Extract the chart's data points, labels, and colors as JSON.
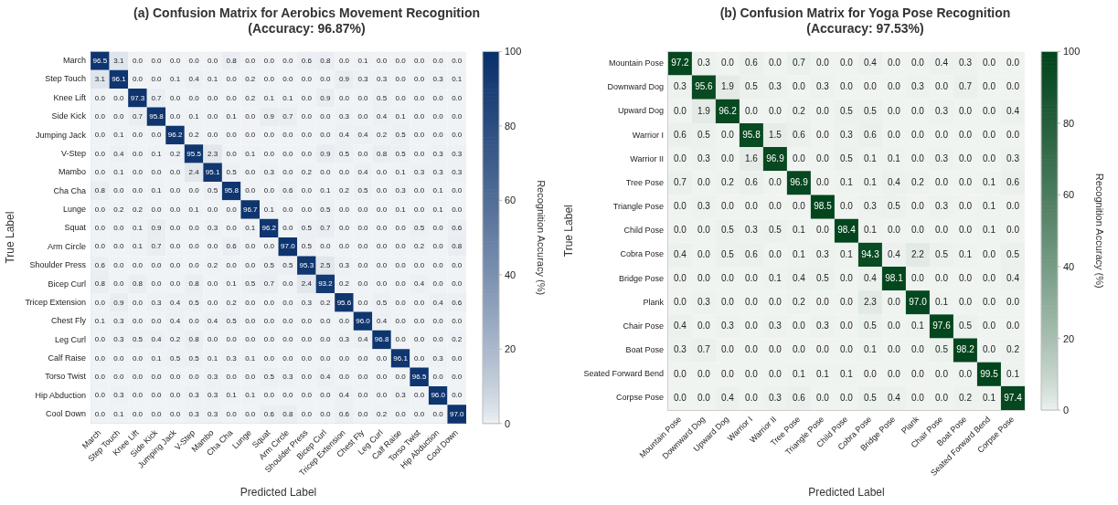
{
  "chart_data": [
    {
      "type": "heatmap",
      "title": "(a) Confusion Matrix for Aerobics Movement Recognition",
      "subtitle": "(Accuracy: 96.87%)",
      "xlabel": "Predicted Label",
      "ylabel": "True Label",
      "clabel": "Recognition Accuracy (%)",
      "color": "#08306b",
      "clim": [
        0,
        100
      ],
      "cticks": [
        0,
        20,
        40,
        60,
        80,
        100
      ],
      "grid": true,
      "categories": [
        "March",
        "Step Touch",
        "Knee Lift",
        "Side Kick",
        "Jumping Jack",
        "V-Step",
        "Mambo",
        "Cha Cha",
        "Lunge",
        "Squat",
        "Arm Circle",
        "Shoulder Press",
        "Bicep Curl",
        "Tricep Extension",
        "Chest Fly",
        "Leg Curl",
        "Calf Raise",
        "Torso Twist",
        "Hip Abduction",
        "Cool Down"
      ],
      "y_categories": [
        "March",
        "Step Touch",
        "Knee Lift",
        "Side Kick",
        "Jumping Jack",
        "V-Step",
        "Mambo",
        "Cha Cha",
        "Lunge",
        "Squat",
        "Arm Circle",
        "Shoulder Press",
        "Bicep Curl",
        "Tricep Extension",
        "Chest Fly",
        "Leg Curl",
        "Calf Raise",
        "Torso Twist",
        "Hip Abduction",
        "Cool Down"
      ],
      "cells": [
        [
          96.5,
          3.1,
          0.0,
          0.0,
          0.0,
          0.0,
          0.0,
          0.8,
          0.0,
          0.0,
          0.0,
          0.6,
          0.8,
          0.0,
          0.1,
          0.0,
          0.0,
          0.0,
          0.0,
          0.0
        ],
        [
          3.1,
          96.1,
          0.0,
          0.0,
          0.1,
          0.4,
          0.1,
          0.0,
          0.2,
          0.0,
          0.0,
          0.0,
          0.0,
          0.9,
          0.3,
          0.3,
          0.0,
          0.0,
          0.3,
          0.1
        ],
        [
          0.0,
          0.0,
          97.3,
          0.7,
          0.0,
          0.0,
          0.0,
          0.0,
          0.2,
          0.1,
          0.1,
          0.0,
          0.9,
          0.0,
          0.0,
          0.5,
          0.0,
          0.0,
          0.0,
          0.0
        ],
        [
          0.0,
          0.0,
          0.7,
          95.8,
          0.0,
          0.1,
          0.0,
          0.1,
          0.0,
          0.9,
          0.7,
          0.0,
          0.0,
          0.3,
          0.0,
          0.4,
          0.1,
          0.0,
          0.0,
          0.0
        ],
        [
          0.0,
          0.1,
          0.0,
          0.0,
          96.2,
          0.2,
          0.0,
          0.0,
          0.0,
          0.0,
          0.0,
          0.0,
          0.0,
          0.4,
          0.4,
          0.2,
          0.5,
          0.0,
          0.0,
          0.0
        ],
        [
          0.0,
          0.4,
          0.0,
          0.1,
          0.2,
          95.5,
          2.3,
          0.0,
          0.1,
          0.0,
          0.0,
          0.0,
          0.9,
          0.5,
          0.0,
          0.8,
          0.5,
          0.0,
          0.3,
          0.3
        ],
        [
          0.0,
          0.1,
          0.0,
          0.0,
          0.0,
          2.4,
          95.1,
          0.5,
          0.0,
          0.3,
          0.0,
          0.2,
          0.0,
          0.0,
          0.4,
          0.0,
          0.1,
          0.3,
          0.3,
          0.3
        ],
        [
          0.8,
          0.0,
          0.0,
          0.1,
          0.0,
          0.0,
          0.5,
          95.8,
          0.0,
          0.0,
          0.6,
          0.0,
          0.1,
          0.2,
          0.5,
          0.0,
          0.3,
          0.0,
          0.1,
          0.0
        ],
        [
          0.0,
          0.2,
          0.2,
          0.0,
          0.0,
          0.1,
          0.0,
          0.0,
          96.7,
          0.1,
          0.0,
          0.0,
          0.5,
          0.0,
          0.0,
          0.0,
          0.1,
          0.0,
          0.1,
          0.0
        ],
        [
          0.0,
          0.0,
          0.1,
          0.9,
          0.0,
          0.0,
          0.3,
          0.0,
          0.1,
          96.2,
          0.0,
          0.5,
          0.7,
          0.0,
          0.0,
          0.0,
          0.0,
          0.5,
          0.0,
          0.6
        ],
        [
          0.0,
          0.0,
          0.1,
          0.7,
          0.0,
          0.0,
          0.0,
          0.6,
          0.0,
          0.0,
          97.0,
          0.5,
          0.0,
          0.0,
          0.0,
          0.0,
          0.0,
          0.2,
          0.0,
          0.8
        ],
        [
          0.6,
          0.0,
          0.0,
          0.0,
          0.0,
          0.0,
          0.2,
          0.0,
          0.0,
          0.5,
          0.5,
          95.3,
          2.5,
          0.3,
          0.0,
          0.0,
          0.0,
          0.0,
          0.0,
          0.0
        ],
        [
          0.8,
          0.0,
          0.8,
          0.0,
          0.0,
          0.8,
          0.0,
          0.1,
          0.5,
          0.7,
          0.0,
          2.4,
          93.2,
          0.2,
          0.0,
          0.0,
          0.0,
          0.4,
          0.0,
          0.0
        ],
        [
          0.0,
          0.9,
          0.0,
          0.3,
          0.4,
          0.5,
          0.0,
          0.2,
          0.0,
          0.0,
          0.0,
          0.3,
          0.2,
          95.6,
          0.0,
          0.5,
          0.0,
          0.0,
          0.4,
          0.6
        ],
        [
          0.1,
          0.3,
          0.0,
          0.0,
          0.4,
          0.0,
          0.4,
          0.5,
          0.0,
          0.0,
          0.0,
          0.0,
          0.0,
          0.0,
          96.0,
          0.4,
          0.0,
          0.0,
          0.0,
          0.0
        ],
        [
          0.0,
          0.3,
          0.5,
          0.4,
          0.2,
          0.8,
          0.0,
          0.0,
          0.0,
          0.0,
          0.0,
          0.0,
          0.0,
          0.3,
          0.4,
          96.8,
          0.0,
          0.0,
          0.0,
          0.2
        ],
        [
          0.0,
          0.0,
          0.0,
          0.1,
          0.5,
          0.5,
          0.1,
          0.3,
          0.1,
          0.0,
          0.0,
          0.0,
          0.0,
          0.0,
          0.0,
          0.0,
          96.1,
          0.0,
          0.3,
          0.0
        ],
        [
          0.0,
          0.0,
          0.0,
          0.0,
          0.0,
          0.0,
          0.3,
          0.0,
          0.0,
          0.5,
          0.3,
          0.0,
          0.4,
          0.0,
          0.0,
          0.0,
          0.0,
          96.5,
          0.0,
          0.0
        ],
        [
          0.0,
          0.3,
          0.0,
          0.0,
          0.0,
          0.3,
          0.3,
          0.1,
          0.1,
          0.0,
          0.0,
          0.0,
          0.0,
          0.4,
          0.0,
          0.0,
          0.3,
          0.0,
          96.0,
          0.0
        ],
        [
          0.0,
          0.1,
          0.0,
          0.0,
          0.0,
          0.3,
          0.3,
          0.0,
          0.0,
          0.6,
          0.8,
          0.0,
          0.0,
          0.6,
          0.0,
          0.2,
          0.0,
          0.0,
          0.0,
          97.0
        ]
      ],
      "cell_labels": [
        [
          "96.5",
          "3.1",
          "0.0",
          "0.0",
          "0.0",
          "0.0",
          "0.0",
          "0.8",
          "0.0",
          "0.0",
          "0.0",
          "0.6",
          "0.8",
          "0.0",
          "0.1",
          "0.0",
          "0.0",
          "0.0",
          "0.0",
          "0.0"
        ],
        [
          "3.1",
          "96.1",
          "0.0",
          "0.0",
          "0.1",
          "0.4",
          "0.1",
          "0.0",
          "0.2",
          "0.0",
          "0.0",
          "0.0",
          "0.0",
          "0.9",
          "0.3",
          "0.3",
          "0.0",
          "0.0",
          "0.3",
          "0.1"
        ],
        [
          "0.0",
          "0.0",
          "97.3",
          "0.7",
          "0.0",
          "0.0",
          "0.0",
          "0.0",
          "0.2",
          "0.1",
          "0.1",
          "0.0",
          "0.9",
          "0.0",
          "0.0",
          "0.5",
          "0.0",
          "0.0",
          "0.0",
          "0.0"
        ],
        [
          "0.0",
          "0.0",
          "0.7",
          "95.8",
          "0.0",
          "0.1",
          "0.0",
          "0.1",
          "0.0",
          "0.9",
          "0.7",
          "0.0",
          "0.0",
          "0.3",
          "0.0",
          "0.4",
          "0.1",
          "0.0",
          "0.0",
          "0.0"
        ],
        [
          "0.0",
          "0.1",
          "0.0",
          "0.0",
          "96.2",
          "0.2",
          "0.0",
          "0.0",
          "0.0",
          "0.0",
          "0.0",
          "0.0",
          "0.0",
          "0.4",
          "0.4",
          "0.2",
          "0.5",
          "0.0",
          "0.0",
          "0.0"
        ],
        [
          "0.0",
          "0.4",
          "0.0",
          "0.1",
          "0.2",
          "95.5",
          "2.3",
          "0.0",
          "0.1",
          "0.0",
          "0.0",
          "0.0",
          "0.9",
          "0.5",
          "0.0",
          "0.8",
          "0.5",
          "0.0",
          "0.3",
          "0.3"
        ],
        [
          "0.0",
          "0.1",
          "0.0",
          "0.0",
          "0.0",
          "2.4",
          "95.1",
          "0.5",
          "0.0",
          "0.3",
          "0.0",
          "0.2",
          "0.0",
          "0.0",
          "0.4",
          "0.0",
          "0.1",
          "0.3",
          "0.3",
          "0.3"
        ],
        [
          "0.8",
          "0.0",
          "0.0",
          "0.1",
          "0.0",
          "0.0",
          "0.5",
          "95.8",
          "0.0",
          "0.0",
          "0.6",
          "0.0",
          "0.1",
          "0.2",
          "0.5",
          "0.0",
          "0.3",
          "0.0",
          "0.1",
          "0.0"
        ],
        [
          "0.0",
          "0.2",
          "0.2",
          "0.0",
          "0.0",
          "0.1",
          "0.0",
          "0.0",
          "96.7",
          "0.1",
          "0.0",
          "0.0",
          "0.5",
          "0.0",
          "0.0",
          "0.0",
          "0.1",
          "0.0",
          "0.1",
          "0.0"
        ],
        [
          "0.0",
          "0.0",
          "0.1",
          "0.9",
          "0.0",
          "0.0",
          "0.3",
          "0.0",
          "0.1",
          "96.2",
          "0.0",
          "0.5",
          "0.7",
          "0.0",
          "0.0",
          "0.0",
          "0.0",
          "0.5",
          "0.0",
          "0.6"
        ],
        [
          "0.0",
          "0.0",
          "0.1",
          "0.7",
          "0.0",
          "0.0",
          "0.0",
          "0.6",
          "0.0",
          "0.0",
          "97.0",
          "0.5",
          "0.0",
          "0.0",
          "0.0",
          "0.0",
          "0.0",
          "0.2",
          "0.0",
          "0.8"
        ],
        [
          "0.6",
          "0.0",
          "0.0",
          "0.0",
          "0.0",
          "0.0",
          "0.2",
          "0.0",
          "0.0",
          "0.5",
          "0.5",
          "95.3",
          "2.5",
          "0.3",
          "0.0",
          "0.0",
          "0.0",
          "0.0",
          "0.0",
          "0.0"
        ],
        [
          "0.8",
          "0.0",
          "0.8",
          "0.0",
          "0.0",
          "0.8",
          "0.0",
          "0.1",
          "0.5",
          "0.7",
          "0.0",
          "2.4",
          "93.2",
          "0.2",
          "0.0",
          "0.0",
          "0.0",
          "0.4",
          "0.0",
          "0.0"
        ],
        [
          "0.0",
          "0.9",
          "0.0",
          "0.3",
          "0.4",
          "0.5",
          "0.0",
          "0.2",
          "0.0",
          "0.0",
          "0.0",
          "0.3",
          "0.2",
          "95.6",
          "0.0",
          "0.5",
          "0.0",
          "0.0",
          "0.4",
          "0.6"
        ],
        [
          "0.1",
          "0.3",
          "0.0",
          "0.0",
          "0.4",
          "0.0",
          "0.4",
          "0.5",
          "0.0",
          "0.0",
          "0.0",
          "0.0",
          "0.0",
          "0.0",
          "96.0",
          "0.4",
          "0.0",
          "0.0",
          "0.0",
          "0.0"
        ],
        [
          "0.0",
          "0.3",
          "0.5",
          "0.4",
          "0.2",
          "0.8",
          "0.0",
          "0.0",
          "0.0",
          "0.0",
          "0.0",
          "0.0",
          "0.0",
          "0.3",
          "0.4",
          "96.8",
          "0.0",
          "0.0",
          "0.0",
          "0.2"
        ],
        [
          "0.0",
          "0.0",
          "0.0",
          "0.1",
          "0.5",
          "0.5",
          "0.1",
          "0.3",
          "0.1",
          "0.0",
          "0.0",
          "0.0",
          "0.0",
          "0.0",
          "0.0",
          "0.0",
          "96.1",
          "0.0",
          "0.3",
          "0.0"
        ],
        [
          "0.0",
          "0.0",
          "0.0",
          "0.0",
          "0.0",
          "0.0",
          "0.3",
          "0.0",
          "0.0",
          "0.5",
          "0.3",
          "0.0",
          "0.4",
          "0.0",
          "0.0",
          "0.0",
          "0.0",
          "96.5",
          "0.0",
          "0.0"
        ],
        [
          "0.0",
          "0.3",
          "0.0",
          "0.0",
          "0.0",
          "0.3",
          "0.3",
          "0.1",
          "0.1",
          "0.0",
          "0.0",
          "0.0",
          "0.0",
          "0.4",
          "0.0",
          "0.0",
          "0.3",
          "0.0",
          "96.0",
          "0.0"
        ],
        [
          "0.0",
          "0.1",
          "0.0",
          "0.0",
          "0.0",
          "0.3",
          "0.3",
          "0.0",
          "0.0",
          "0.6",
          "0.8",
          "0.0",
          "0.0",
          "0.6",
          "0.0",
          "0.2",
          "0.0",
          "0.0",
          "0.0",
          "97.0"
        ]
      ]
    },
    {
      "type": "heatmap",
      "title": "(b) Confusion Matrix for Yoga Pose Recognition",
      "subtitle": "(Accuracy: 97.53%)",
      "xlabel": "Predicted Label",
      "ylabel": "True Label",
      "clabel": "Recognition Accuracy (%)",
      "color": "#00441b",
      "clim": [
        0,
        100
      ],
      "cticks": [
        0,
        20,
        40,
        60,
        80,
        100
      ],
      "grid": true,
      "categories": [
        "Mountain Pose",
        "Downward Dog",
        "Upward Dog",
        "Warrior I",
        "Warrior II",
        "Tree Pose",
        "Triangle Pose",
        "Child Pose",
        "Cobra Pose",
        "Bridge Pose",
        "Plank",
        "Chair Pose",
        "Boat Pose",
        "Seated Forward Bend",
        "Corpse Pose"
      ],
      "y_categories": [
        "Mountain Pose",
        "Downward Dog",
        "Upward Dog",
        "Warrior I",
        "Warrior II",
        "Tree Pose",
        "Triangle Pose",
        "Child Pose",
        "Cobra Pose",
        "Bridge Pose",
        "Plank",
        "Chair Pose",
        "Boat Pose",
        "Seated Forward Bend",
        "Corpse Pose"
      ],
      "cells": [
        [
          97.2,
          0.3,
          0.0,
          0.6,
          0.0,
          0.7,
          0.0,
          0.0,
          0.4,
          0.0,
          0.0,
          0.4,
          0.3,
          0.0,
          0.0
        ],
        [
          0.3,
          95.6,
          1.9,
          0.5,
          0.3,
          0.0,
          0.3,
          0.0,
          0.0,
          0.0,
          0.3,
          0.0,
          0.7,
          0.0,
          0.0
        ],
        [
          0.0,
          1.9,
          96.2,
          0.0,
          0.0,
          0.2,
          0.0,
          0.5,
          0.5,
          0.0,
          0.0,
          0.3,
          0.0,
          0.0,
          0.4
        ],
        [
          0.6,
          0.5,
          0.0,
          95.8,
          1.5,
          0.6,
          0.0,
          0.3,
          0.6,
          0.0,
          0.0,
          0.0,
          0.0,
          0.0,
          0.0
        ],
        [
          0.0,
          0.3,
          0.0,
          1.6,
          96.9,
          0.0,
          0.0,
          0.5,
          0.1,
          0.1,
          0.0,
          0.3,
          0.0,
          0.0,
          0.3
        ],
        [
          0.7,
          0.0,
          0.2,
          0.6,
          0.0,
          96.9,
          0.0,
          0.1,
          0.1,
          0.4,
          0.2,
          0.0,
          0.0,
          0.1,
          0.6
        ],
        [
          0.0,
          0.3,
          0.0,
          0.0,
          0.0,
          0.0,
          98.5,
          0.0,
          0.3,
          0.5,
          0.0,
          0.3,
          0.0,
          0.1,
          0.0
        ],
        [
          0.0,
          0.0,
          0.5,
          0.3,
          0.5,
          0.1,
          0.0,
          98.4,
          0.1,
          0.0,
          0.0,
          0.0,
          0.0,
          0.1,
          0.0
        ],
        [
          0.4,
          0.0,
          0.5,
          0.6,
          0.0,
          0.1,
          0.3,
          0.1,
          94.3,
          0.4,
          2.2,
          0.5,
          0.1,
          0.0,
          0.5
        ],
        [
          0.0,
          0.0,
          0.0,
          0.0,
          0.1,
          0.4,
          0.5,
          0.0,
          0.4,
          98.1,
          0.0,
          0.0,
          0.0,
          0.0,
          0.4
        ],
        [
          0.0,
          0.3,
          0.0,
          0.0,
          0.0,
          0.2,
          0.0,
          0.0,
          2.3,
          0.0,
          97.0,
          0.1,
          0.0,
          0.0,
          0.0
        ],
        [
          0.4,
          0.0,
          0.3,
          0.0,
          0.3,
          0.0,
          0.3,
          0.0,
          0.5,
          0.0,
          0.1,
          97.6,
          0.5,
          0.0,
          0.0
        ],
        [
          0.3,
          0.7,
          0.0,
          0.0,
          0.0,
          0.0,
          0.0,
          0.0,
          0.1,
          0.0,
          0.0,
          0.5,
          98.2,
          0.0,
          0.2
        ],
        [
          0.0,
          0.0,
          0.0,
          0.0,
          0.0,
          0.1,
          0.1,
          0.1,
          0.0,
          0.0,
          0.0,
          0.0,
          0.0,
          99.5,
          0.1
        ],
        [
          0.0,
          0.0,
          0.4,
          0.0,
          0.3,
          0.6,
          0.0,
          0.0,
          0.5,
          0.4,
          0.0,
          0.0,
          0.2,
          0.1,
          97.4
        ]
      ],
      "cell_labels": [
        [
          "97.2",
          "0.3",
          "0.0",
          "0.6",
          "0.0",
          "0.7",
          "0.0",
          "0.0",
          "0.4",
          "0.0",
          "0.0",
          "0.4",
          "0.3",
          "0.0",
          "0.0"
        ],
        [
          "0.3",
          "95.6",
          "1.9",
          "0.5",
          "0.3",
          "0.0",
          "0.3",
          "0.0",
          "0.0",
          "0.0",
          "0.3",
          "0.0",
          "0.7",
          "0.0",
          "0.0"
        ],
        [
          "0.0",
          "1.9",
          "96.2",
          "0.0",
          "0.0",
          "0.2",
          "0.0",
          "0.5",
          "0.5",
          "0.0",
          "0.0",
          "0.3",
          "0.0",
          "0.0",
          "0.4"
        ],
        [
          "0.6",
          "0.5",
          "0.0",
          "95.8",
          "1.5",
          "0.6",
          "0.0",
          "0.3",
          "0.6",
          "0.0",
          "0.0",
          "0.0",
          "0.0",
          "0.0",
          "0.0"
        ],
        [
          "0.0",
          "0.3",
          "0.0",
          "1.6",
          "96.9",
          "0.0",
          "0.0",
          "0.5",
          "0.1",
          "0.1",
          "0.0",
          "0.3",
          "0.0",
          "0.0",
          "0.3"
        ],
        [
          "0.7",
          "0.0",
          "0.2",
          "0.6",
          "0.0",
          "96.9",
          "0.0",
          "0.1",
          "0.1",
          "0.4",
          "0.2",
          "0.0",
          "0.0",
          "0.1",
          "0.6"
        ],
        [
          "0.0",
          "0.3",
          "0.0",
          "0.0",
          "0.0",
          "0.0",
          "98.5",
          "0.0",
          "0.3",
          "0.5",
          "0.0",
          "0.3",
          "0.0",
          "0.1",
          "0.0"
        ],
        [
          "0.0",
          "0.0",
          "0.5",
          "0.3",
          "0.5",
          "0.1",
          "0.0",
          "98.4",
          "0.1",
          "0.0",
          "0.0",
          "0.0",
          "0.0",
          "0.1",
          "0.0"
        ],
        [
          "0.4",
          "0.0",
          "0.5",
          "0.6",
          "0.0",
          "0.1",
          "0.3",
          "0.1",
          "94.3",
          "0.4",
          "2.2",
          "0.5",
          "0.1",
          "0.0",
          "0.5"
        ],
        [
          "0.0",
          "0.0",
          "0.0",
          "0.0",
          "0.1",
          "0.4",
          "0.5",
          "0.0",
          "0.4",
          "98.1",
          "0.0",
          "0.0",
          "0.0",
          "0.0",
          "0.4"
        ],
        [
          "0.0",
          "0.3",
          "0.0",
          "0.0",
          "0.0",
          "0.2",
          "0.0",
          "0.0",
          "2.3",
          "0.0",
          "97.0",
          "0.1",
          "0.0",
          "0.0",
          "0.0"
        ],
        [
          "0.4",
          "0.0",
          "0.3",
          "0.0",
          "0.3",
          "0.0",
          "0.3",
          "0.0",
          "0.5",
          "0.0",
          "0.1",
          "97.6",
          "0.5",
          "0.0",
          "0.0"
        ],
        [
          "0.3",
          "0.7",
          "0.0",
          "0.0",
          "0.0",
          "0.0",
          "0.0",
          "0.0",
          "0.1",
          "0.0",
          "0.0",
          "0.5",
          "98.2",
          "0.0",
          "0.2"
        ],
        [
          "0.0",
          "0.0",
          "0.0",
          "0.0",
          "0.0",
          "0.1",
          "0.1",
          "0.1",
          "0.0",
          "0.0",
          "0.0",
          "0.0",
          "0.0",
          "99.5",
          "0.1"
        ],
        [
          "0.0",
          "0.0",
          "0.4",
          "0.0",
          "0.3",
          "0.6",
          "0.0",
          "0.0",
          "0.5",
          "0.4",
          "0.0",
          "0.0",
          "0.2",
          "0.1",
          "97.4"
        ]
      ]
    }
  ]
}
